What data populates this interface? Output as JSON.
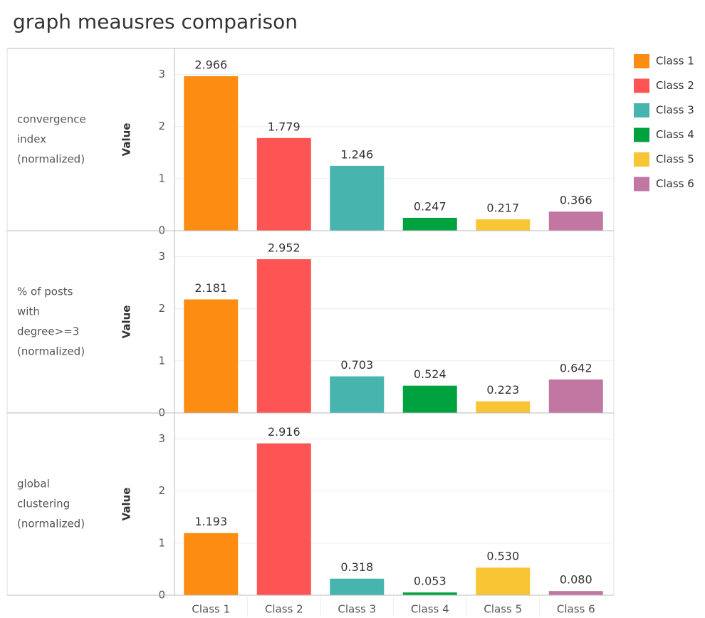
{
  "chart_data": {
    "type": "bar",
    "title": "graph meausres comparison",
    "categories": [
      "Class 1",
      "Class 2",
      "Class 3",
      "Class 4",
      "Class 5",
      "Class 6"
    ],
    "colors": [
      "#fd8c12",
      "#ff5454",
      "#47b5ae",
      "#00a23f",
      "#f8c535",
      "#c277a3"
    ],
    "legend": "right",
    "grid": true,
    "panels": [
      {
        "label": [
          "convergence",
          "index",
          "(normalized)"
        ],
        "ylabel": "Value",
        "values": [
          2.966,
          1.779,
          1.246,
          0.247,
          0.217,
          0.366
        ],
        "value_labels": [
          "2.966",
          "1.779",
          "1.246",
          "0.247",
          "0.217",
          "0.366"
        ],
        "ylim": [
          0,
          3.5
        ],
        "yticks": [
          0,
          1,
          2,
          3
        ]
      },
      {
        "label": [
          "% of posts",
          "with",
          "degree>=3",
          "(normalized)"
        ],
        "ylabel": "Value",
        "values": [
          2.181,
          2.952,
          0.703,
          0.524,
          0.223,
          0.642
        ],
        "value_labels": [
          "2.181",
          "2.952",
          "0.703",
          "0.524",
          "0.223",
          "0.642"
        ],
        "ylim": [
          0,
          3.5
        ],
        "yticks": [
          0,
          1,
          2,
          3
        ]
      },
      {
        "label": [
          "global",
          "clustering",
          "(normalized)"
        ],
        "ylabel": "Value",
        "values": [
          1.193,
          2.916,
          0.318,
          0.053,
          0.53,
          0.08
        ],
        "value_labels": [
          "1.193",
          "2.916",
          "0.318",
          "0.053",
          "0.530",
          "0.080"
        ],
        "ylim": [
          0,
          3.5
        ],
        "yticks": [
          0,
          1,
          2,
          3
        ]
      }
    ]
  }
}
